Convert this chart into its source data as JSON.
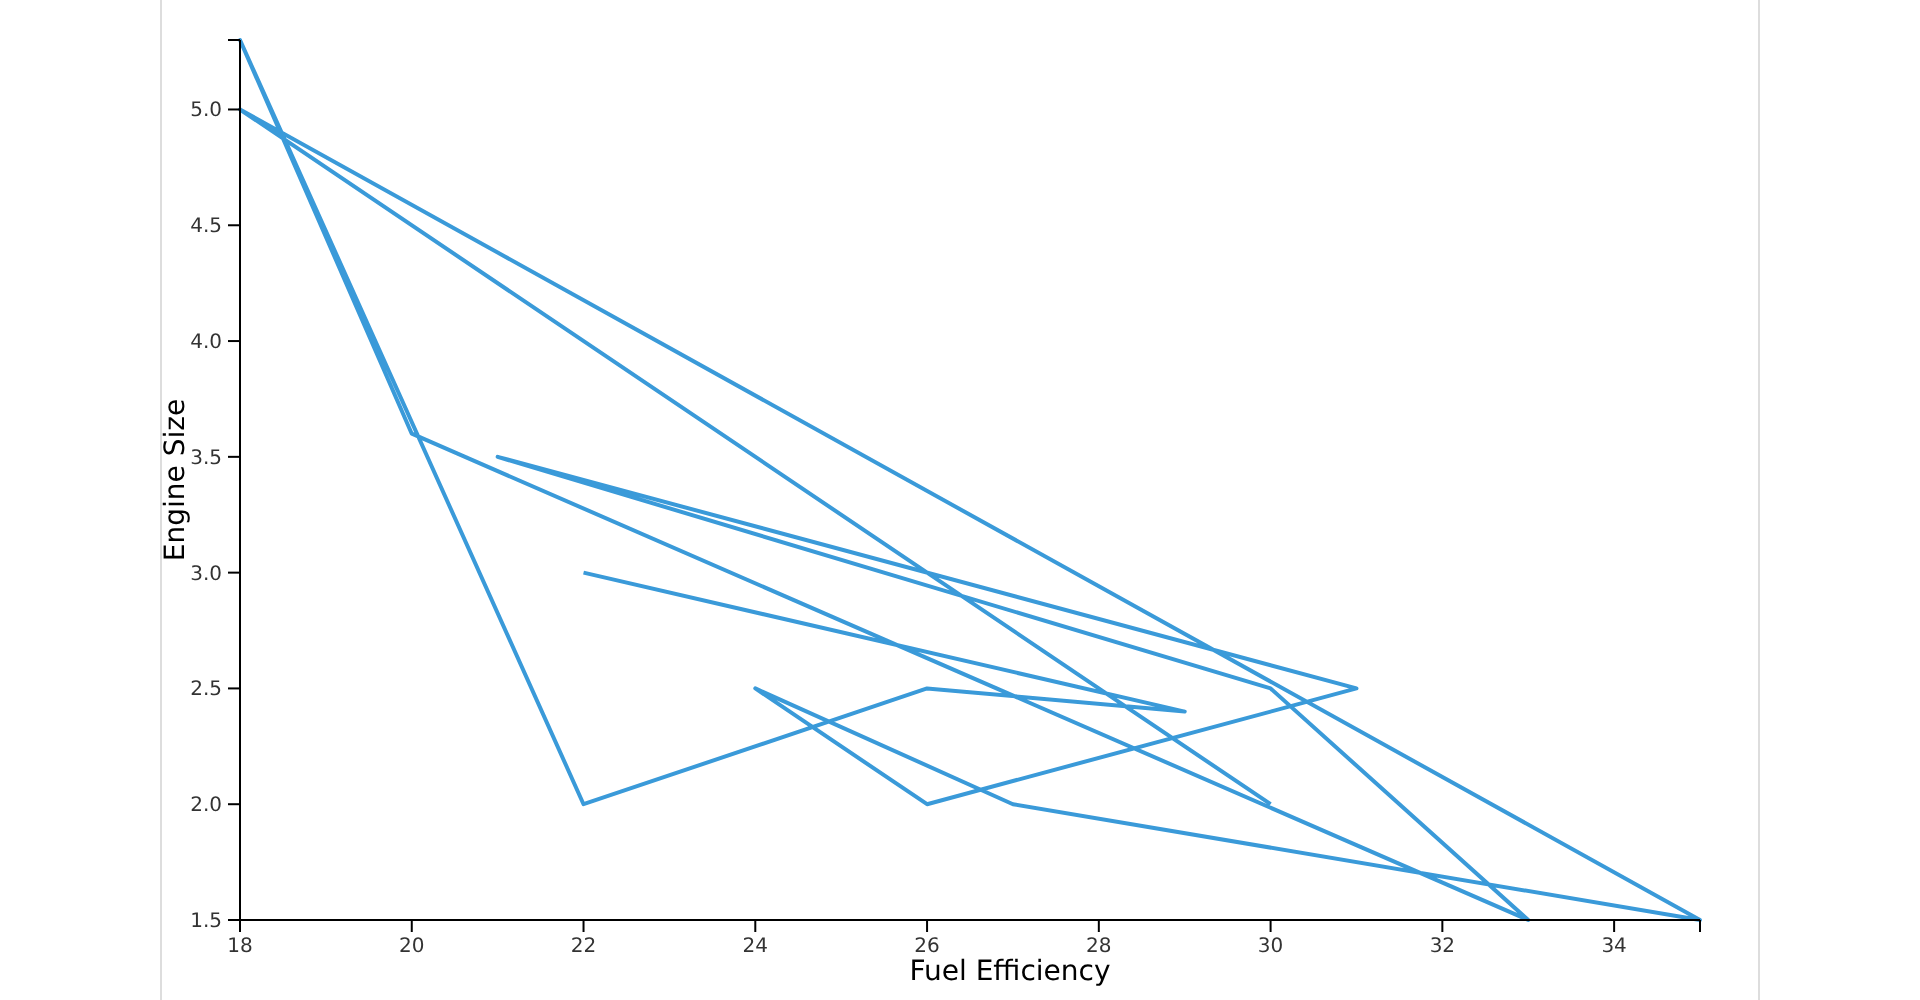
{
  "chart_data": {
    "type": "line",
    "xlabel": "Fuel Efficiency",
    "ylabel": "Engine Size",
    "series": [
      {
        "color": "#3a9ad9",
        "x": [
          22,
          29,
          26,
          22,
          18,
          20,
          33,
          30,
          21,
          31,
          26,
          24,
          27,
          35,
          18,
          30
        ],
        "values": [
          3.0,
          2.4,
          2.5,
          2.0,
          5.3,
          3.6,
          1.5,
          2.5,
          3.5,
          2.5,
          2.0,
          2.5,
          2.0,
          1.5,
          5.0,
          2.0
        ]
      }
    ],
    "xlim": [
      18,
      35
    ],
    "xticks": [
      18,
      20,
      22,
      24,
      26,
      28,
      30,
      32,
      34
    ],
    "ylim": [
      1.5,
      5.3
    ],
    "yticks": [
      {
        "value": 1.5,
        "label": "1.5"
      },
      {
        "value": 2,
        "label": "2.0"
      },
      {
        "value": 2.5,
        "label": "2.5"
      },
      {
        "value": 3,
        "label": "3.0"
      },
      {
        "value": 3.5,
        "label": "3.5"
      },
      {
        "value": 4,
        "label": "4.0"
      },
      {
        "value": 4.5,
        "label": "4.5"
      },
      {
        "value": 5,
        "label": "5.0"
      }
    ],
    "grid": false,
    "marker": "none",
    "line_style": "solid"
  }
}
